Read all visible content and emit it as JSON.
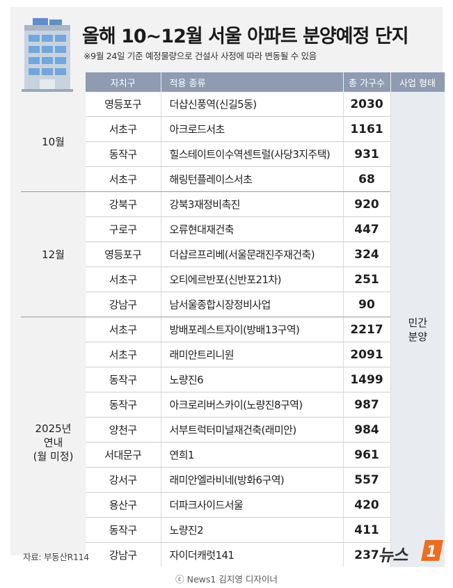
{
  "header": {
    "title": "올해 10~12월 서울 아파트 분양예정 단지",
    "subtitle": "※9월 24일 기준 예정물량으로 건설사 사정에 따라 변동될 수 있음"
  },
  "table": {
    "columns": [
      "자치구",
      "적용 종류",
      "총 가구수",
      "사업 형태"
    ],
    "sale_type": "민간\n분양",
    "groups": [
      {
        "month": "10월",
        "rows": [
          {
            "district": "영등포구",
            "name": "더샵신풍역(신길5동)",
            "count": "2030"
          },
          {
            "district": "서초구",
            "name": "아크로드서초",
            "count": "1161"
          },
          {
            "district": "동작구",
            "name": "힐스테이트이수역센트럴(사당3지주택)",
            "count": "931"
          },
          {
            "district": "서초구",
            "name": "해링턴플레이스서초",
            "count": "68"
          }
        ]
      },
      {
        "month": "12월",
        "rows": [
          {
            "district": "강북구",
            "name": "강북3재정비촉진",
            "count": "920"
          },
          {
            "district": "구로구",
            "name": "오류현대재건축",
            "count": "447"
          },
          {
            "district": "영등포구",
            "name": "더샵르프리베(서울문래진주재건축)",
            "count": "324"
          },
          {
            "district": "서초구",
            "name": "오티에르반포(신반포21차)",
            "count": "251"
          },
          {
            "district": "강남구",
            "name": "남서울종합시장정비사업",
            "count": "90"
          }
        ]
      },
      {
        "month": "2025년\n연내\n(월 미정)",
        "rows": [
          {
            "district": "서초구",
            "name": "방배포레스트자이(방배13구역)",
            "count": "2217"
          },
          {
            "district": "서초구",
            "name": "래미안트리니원",
            "count": "2091"
          },
          {
            "district": "동작구",
            "name": "노량진6",
            "count": "1499"
          },
          {
            "district": "동작구",
            "name": "아크로리버스카이(노량진8구역)",
            "count": "987"
          },
          {
            "district": "양천구",
            "name": "서부트럭터미널재건축(래미안)",
            "count": "984"
          },
          {
            "district": "서대문구",
            "name": "연희1",
            "count": "961"
          },
          {
            "district": "강서구",
            "name": "래미안엘라비네(방화6구역)",
            "count": "557"
          },
          {
            "district": "용산구",
            "name": "더파크사이드서울",
            "count": "420"
          },
          {
            "district": "동작구",
            "name": "노량진2",
            "count": "411"
          },
          {
            "district": "강남구",
            "name": "자이더캐럿141",
            "count": "237"
          }
        ]
      }
    ]
  },
  "footer": {
    "source": "자료: 부동산R114",
    "logo_text": "뉴스",
    "logo_mark": "1",
    "credit": "ⓒ News1 김지영 디자이너"
  },
  "colors": {
    "header_bg": "#8e9bb0",
    "logo_orange": "#ef6c21"
  }
}
